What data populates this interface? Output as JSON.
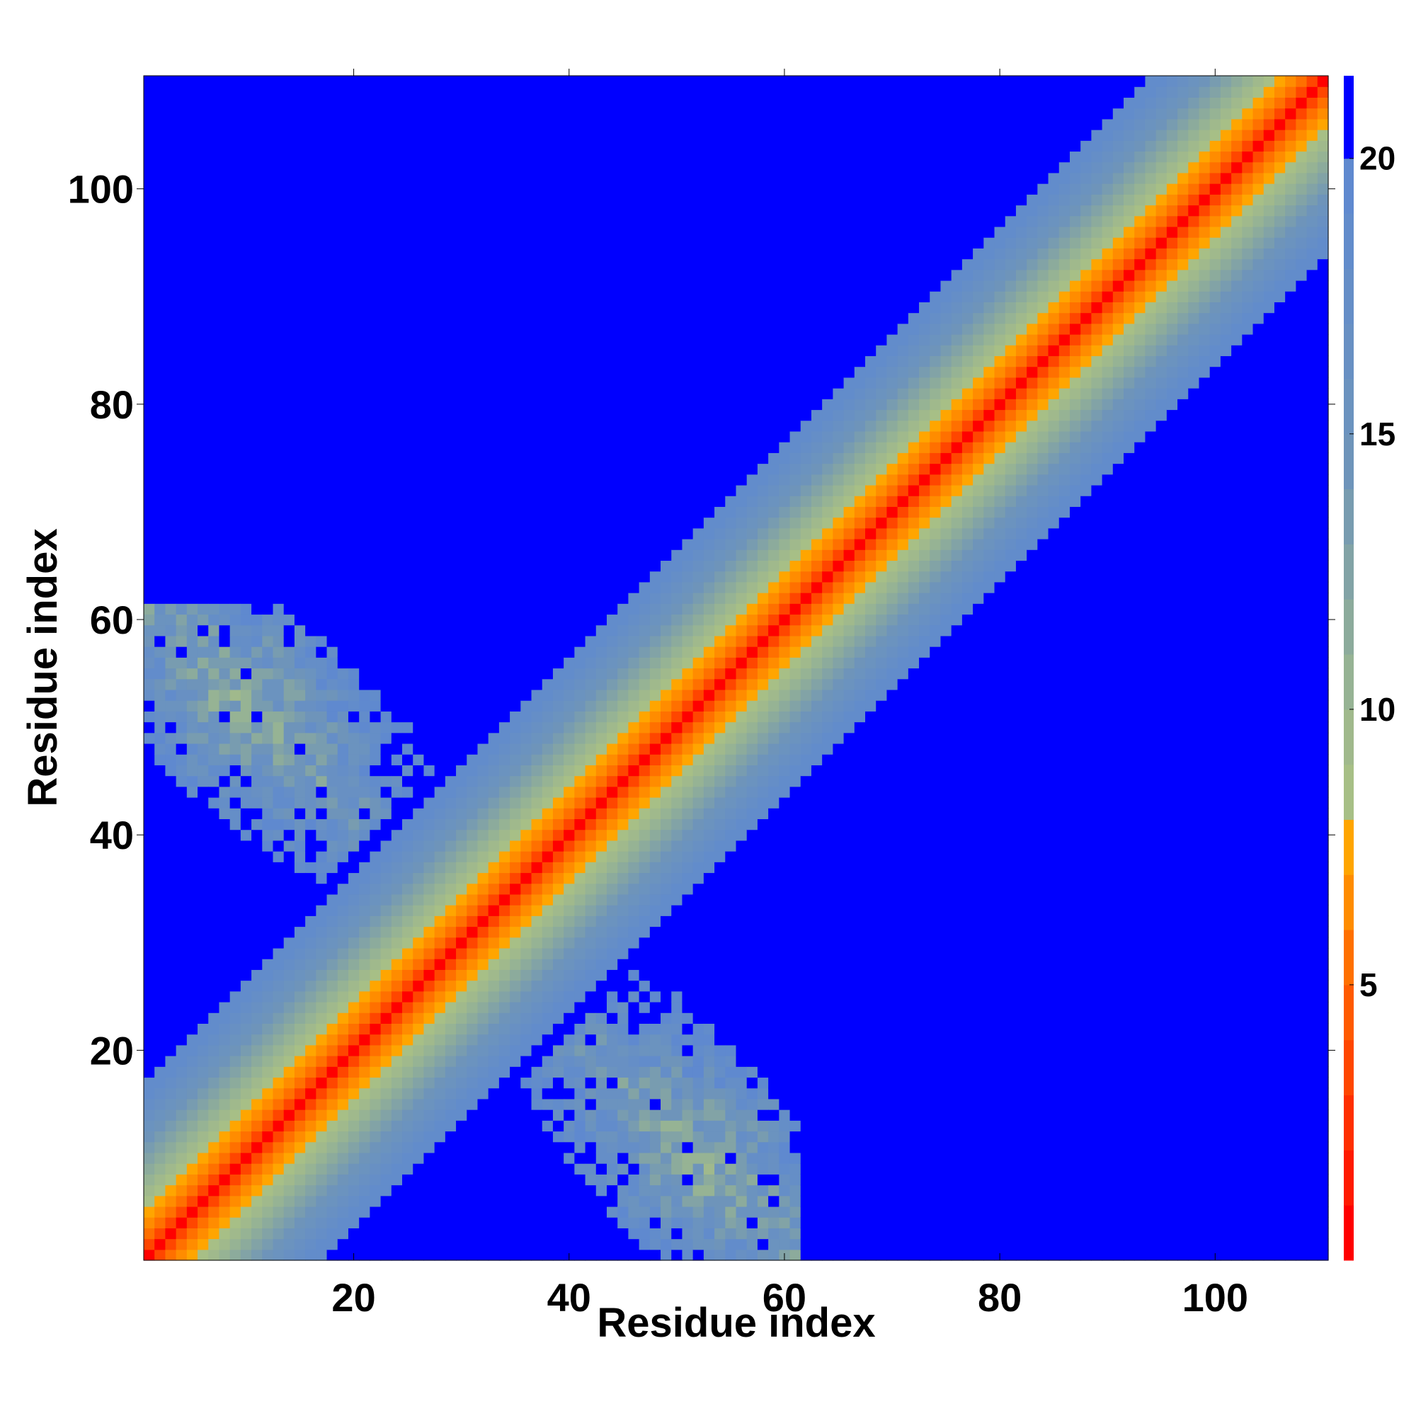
{
  "chart_data": {
    "type": "heatmap",
    "title": "",
    "xlabel": "Residue index",
    "ylabel": "Residue index",
    "n_residues": 110,
    "xlim": [
      0.5,
      110.5
    ],
    "ylim": [
      0.5,
      110.5
    ],
    "x_ticks": [
      20,
      40,
      60,
      80,
      100
    ],
    "y_ticks": [
      20,
      40,
      60,
      80,
      100
    ],
    "colorbar": {
      "ticks": [
        5,
        10,
        15,
        20
      ],
      "range": [
        0,
        21.5
      ],
      "levels": [
        {
          "max": 1,
          "color": "#ff0000"
        },
        {
          "max": 2,
          "color": "#ff1a00"
        },
        {
          "max": 3,
          "color": "#ff2f00"
        },
        {
          "max": 4,
          "color": "#ff4600"
        },
        {
          "max": 5,
          "color": "#ff5a00"
        },
        {
          "max": 6,
          "color": "#ff7000"
        },
        {
          "max": 7,
          "color": "#ff8c00"
        },
        {
          "max": 8,
          "color": "#ffa500"
        },
        {
          "max": 9,
          "color": "#a7bf86"
        },
        {
          "max": 10,
          "color": "#a0b98c"
        },
        {
          "max": 11,
          "color": "#96b394"
        },
        {
          "max": 12,
          "color": "#8cab9c"
        },
        {
          "max": 13,
          "color": "#82a3a6"
        },
        {
          "max": 14,
          "color": "#789cb0"
        },
        {
          "max": 15,
          "color": "#6e94ba"
        },
        {
          "max": 16,
          "color": "#6b93bf"
        },
        {
          "max": 17,
          "color": "#6890c3"
        },
        {
          "max": 18,
          "color": "#658ec7"
        },
        {
          "max": 19,
          "color": "#628ccb"
        },
        {
          "max": 20,
          "color": "#5f89cf"
        },
        {
          "max": 21.5,
          "color": "#0000ff"
        }
      ]
    },
    "structure": {
      "diagonal_band": "distance grows with sequence separation |i-j|: red near diagonal, orange, then grey-green, light blue, blue beyond ~20",
      "off_diagonal_contact": "sheet-like contact region pairing residues ~1-30 with ~33-60 (anti-parallel)"
    }
  }
}
